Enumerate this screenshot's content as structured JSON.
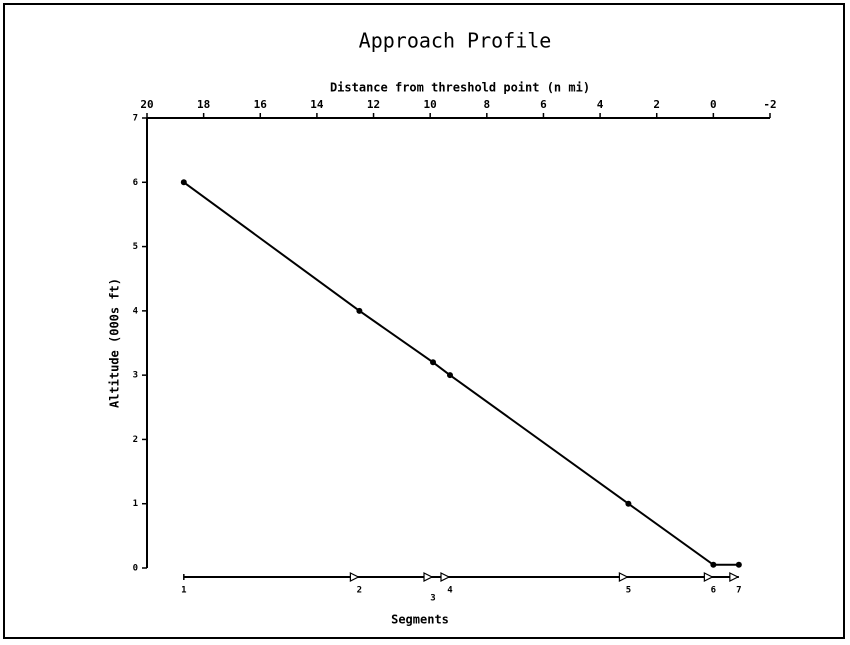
{
  "chart_data": {
    "type": "line",
    "title": "Approach Profile",
    "x_label": "Distance from threshold point (n mi)",
    "y_label": "Altitude (000s ft)",
    "segments_label": "Segments",
    "x": [
      18.7,
      12.5,
      9.9,
      9.3,
      3.0,
      0,
      -0.9
    ],
    "y": [
      6.0,
      4.0,
      3.2,
      3.0,
      1.0,
      0.05,
      0.05
    ],
    "segments": [
      "1",
      "2",
      "3",
      "4",
      "5",
      "6",
      "7"
    ],
    "color": "#000000",
    "xlim": [
      20,
      -2
    ],
    "xticks": [
      20,
      18,
      16,
      14,
      12,
      10,
      8,
      6,
      4,
      2,
      0,
      -2
    ],
    "ylim": [
      0,
      7
    ],
    "yticks": [
      0,
      1,
      2,
      3,
      4,
      5,
      6,
      7
    ]
  }
}
